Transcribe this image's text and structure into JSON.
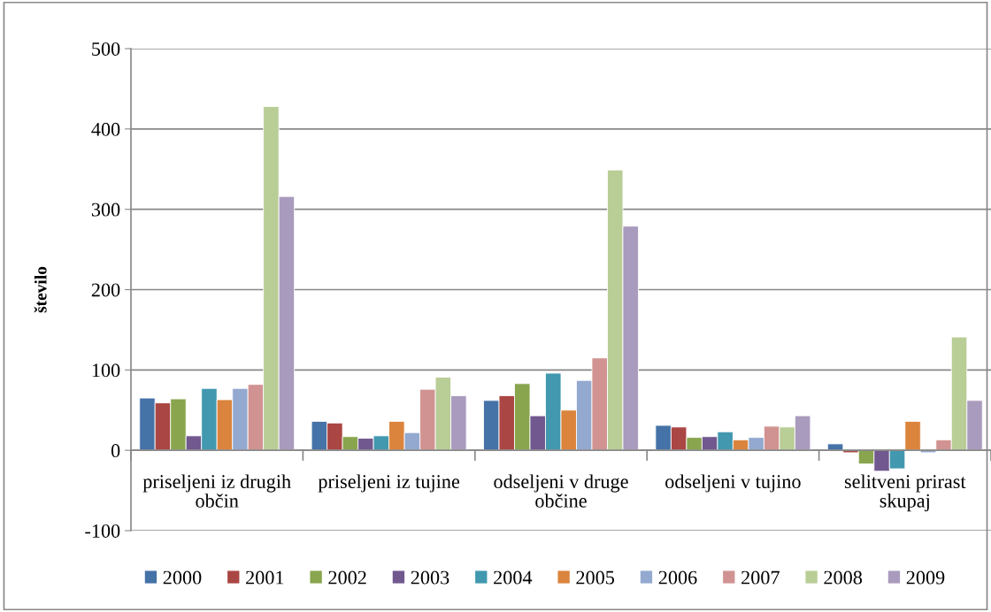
{
  "chart_data": {
    "type": "bar",
    "ylabel": "število",
    "categories": [
      "priseljeni iz drugih občin",
      "priseljeni iz tujine",
      "odseljeni v druge občine",
      "odseljeni v tujino",
      "selitveni prirast skupaj"
    ],
    "series": [
      {
        "name": "2000",
        "color": "#4572a7",
        "values": [
          65,
          36,
          62,
          31,
          8
        ]
      },
      {
        "name": "2001",
        "color": "#aa4643",
        "values": [
          59,
          34,
          68,
          29,
          -3
        ]
      },
      {
        "name": "2002",
        "color": "#89a54e",
        "values": [
          64,
          17,
          83,
          16,
          -17
        ]
      },
      {
        "name": "2003",
        "color": "#71588f",
        "values": [
          18,
          15,
          43,
          17,
          -26
        ]
      },
      {
        "name": "2004",
        "color": "#4198af",
        "values": [
          77,
          18,
          96,
          23,
          -23
        ]
      },
      {
        "name": "2005",
        "color": "#db843d",
        "values": [
          63,
          36,
          50,
          13,
          36
        ]
      },
      {
        "name": "2006",
        "color": "#93a9cf",
        "values": [
          77,
          22,
          87,
          16,
          -3
        ]
      },
      {
        "name": "2007",
        "color": "#d19392",
        "values": [
          82,
          76,
          115,
          30,
          13
        ]
      },
      {
        "name": "2008",
        "color": "#b9cd96",
        "values": [
          428,
          91,
          349,
          29,
          141
        ]
      },
      {
        "name": "2009",
        "color": "#a99bbd",
        "values": [
          316,
          68,
          279,
          43,
          62
        ]
      }
    ],
    "ylim": [
      -100,
      500
    ],
    "yticks": [
      -100,
      0,
      100,
      200,
      300,
      400,
      500
    ],
    "grid": "y",
    "legend": "bottom"
  }
}
